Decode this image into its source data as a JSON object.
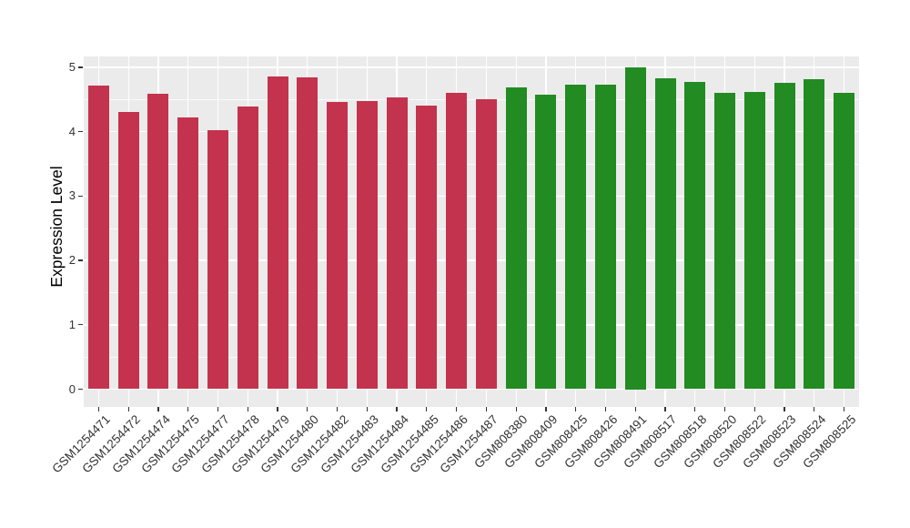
{
  "figure": {
    "panel_background": "#EBEBEB",
    "grid_color": "#FFFFFF",
    "tick_color": "#333333",
    "axis_label_color": "#333333",
    "title_color": "#000000"
  },
  "chart_data": {
    "type": "bar",
    "title": "",
    "xlabel": "",
    "ylabel": "Expression Level",
    "ylim": [
      -0.25,
      5.17
    ],
    "yticks": [
      0,
      1,
      2,
      3,
      4,
      5
    ],
    "grid": "on",
    "legend": "none",
    "group_colors": {
      "left_group": "#C3334D",
      "right_group": "#228B22"
    },
    "categories": [
      "GSM1254471",
      "GSM1254472",
      "GSM1254474",
      "GSM1254475",
      "GSM1254477",
      "GSM1254478",
      "GSM1254479",
      "GSM1254480",
      "GSM1254482",
      "GSM1254483",
      "GSM1254484",
      "GSM1254485",
      "GSM1254486",
      "GSM1254487",
      "GSM808380",
      "GSM808409",
      "GSM808425",
      "GSM808426",
      "GSM808491",
      "GSM808517",
      "GSM808518",
      "GSM808520",
      "GSM808522",
      "GSM808523",
      "GSM808524",
      "GSM808525"
    ],
    "values": [
      4.72,
      4.3,
      4.59,
      4.22,
      4.02,
      4.39,
      4.86,
      4.84,
      4.46,
      4.47,
      4.53,
      4.4,
      4.61,
      4.5,
      4.69,
      4.58,
      4.73,
      4.73,
      5.0,
      4.83,
      4.78,
      4.6,
      4.62,
      4.76,
      4.82,
      4.6
    ],
    "colors": [
      "#C3334D",
      "#C3334D",
      "#C3334D",
      "#C3334D",
      "#C3334D",
      "#C3334D",
      "#C3334D",
      "#C3334D",
      "#C3334D",
      "#C3334D",
      "#C3334D",
      "#C3334D",
      "#C3334D",
      "#C3334D",
      "#228B22",
      "#228B22",
      "#228B22",
      "#228B22",
      "#228B22",
      "#228B22",
      "#228B22",
      "#228B22",
      "#228B22",
      "#228B22",
      "#228B22",
      "#228B22"
    ]
  }
}
